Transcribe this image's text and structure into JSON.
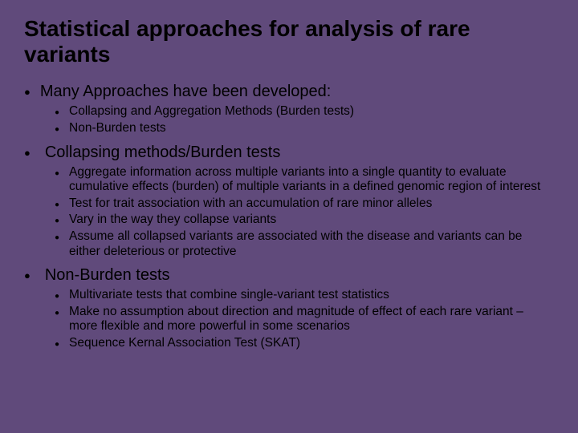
{
  "background_color": "#604a7b",
  "text_color": "#000000",
  "title": "Statistical approaches for analysis of rare variants",
  "sections": [
    {
      "heading": "Many Approaches have been developed:",
      "items": [
        "Collapsing and Aggregation Methods  (Burden tests)",
        "Non-Burden tests"
      ]
    },
    {
      "heading": "Collapsing methods/Burden tests",
      "items": [
        "Aggregate information across multiple  variants into a single quantity to evaluate cumulative effects (burden) of multiple variants in a defined genomic region of interest",
        "Test for trait association with an accumulation of rare minor alleles",
        "Vary in the way they collapse variants",
        "Assume all collapsed variants are associated with the disease and variants can be either deleterious or protective"
      ]
    },
    {
      "heading": "Non-Burden tests",
      "items": [
        "Multivariate tests that combine single-variant test statistics",
        "Make no assumption about direction and magnitude of effect of each rare variant – more flexible and more powerful in some scenarios",
        "Sequence Kernal Association Test (SKAT)"
      ]
    }
  ]
}
